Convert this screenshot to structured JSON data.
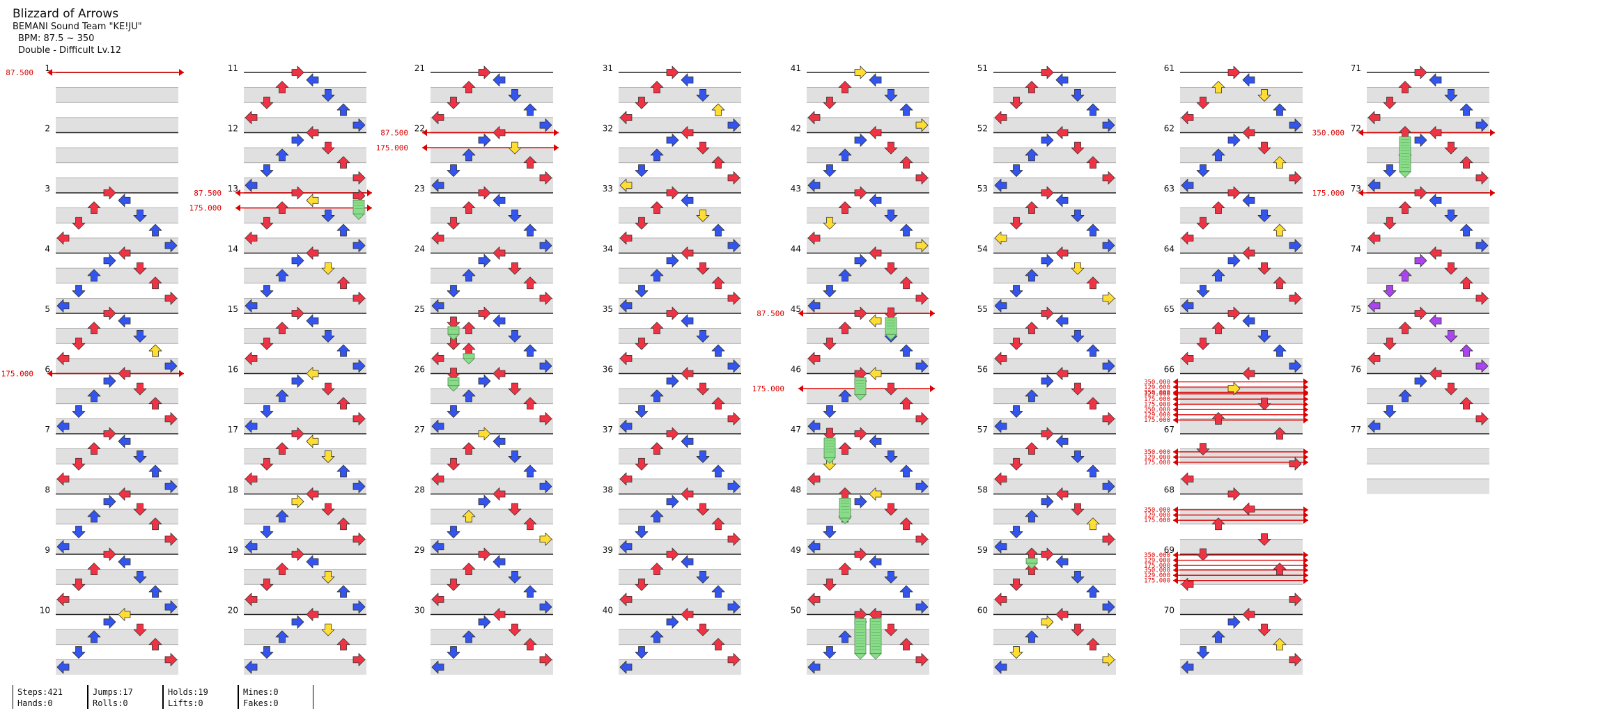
{
  "song": {
    "title": "Blizzard of Arrows",
    "artist": "BEMANI Sound Team \"KE!JU\"",
    "bpm": "BPM: 87.5 ~ 350",
    "difficulty": "Double - Difficult  Lv.12"
  },
  "columns": [
    {
      "measures": [
        1,
        2,
        3,
        4,
        5,
        6,
        7,
        8,
        9,
        10
      ]
    },
    {
      "measures": [
        11,
        12,
        13,
        14,
        15,
        16,
        17,
        18,
        19,
        20
      ]
    },
    {
      "measures": [
        21,
        22,
        23,
        24,
        25,
        26,
        27,
        28,
        29,
        30
      ]
    },
    {
      "measures": [
        31,
        32,
        33,
        34,
        35,
        36,
        37,
        38,
        39,
        40
      ]
    },
    {
      "measures": [
        41,
        42,
        43,
        44,
        45,
        46,
        47,
        48,
        49,
        50
      ]
    },
    {
      "measures": [
        51,
        52,
        53,
        54,
        55,
        56,
        57,
        58,
        59,
        60
      ]
    },
    {
      "measures": [
        61,
        62,
        63,
        64,
        65,
        66,
        67,
        68,
        69,
        70
      ]
    },
    {
      "measures": [
        71,
        72,
        73,
        74,
        75,
        76,
        77
      ]
    }
  ],
  "bpm_changes": [
    {
      "measure": 1,
      "beat": 0,
      "bpm": "87.500"
    },
    {
      "measure": 6,
      "beat": 0,
      "bpm": "175.000"
    },
    {
      "measure": 13,
      "beat": 0,
      "bpm": "87.500"
    },
    {
      "measure": 13,
      "beat": 1,
      "bpm": "175.000"
    },
    {
      "measure": 22,
      "beat": 0,
      "bpm": "87.500"
    },
    {
      "measure": 22,
      "beat": 1,
      "bpm": "175.000"
    },
    {
      "measure": 45,
      "beat": 0,
      "bpm": "87.500"
    },
    {
      "measure": 46,
      "beat": 1,
      "bpm": "175.000"
    },
    {
      "measure": 72,
      "beat": 0,
      "bpm": "350.000"
    },
    {
      "measure": 73,
      "beat": 0,
      "bpm": "175.000"
    }
  ],
  "bpm_clusters": [
    {
      "measure": 66,
      "beat": 0.55,
      "labels": [
        "350.000",
        "129.000",
        "350.000"
      ]
    },
    {
      "measure": 66,
      "beat": 1.35,
      "labels": [
        "129.000",
        "175.000",
        "175.000",
        "350.000",
        "129.000",
        "175.000"
      ]
    },
    {
      "measure": 67,
      "beat": 1.2,
      "labels": [
        "350.000",
        "129.000",
        "175.000"
      ]
    },
    {
      "measure": 68,
      "beat": 1.05,
      "labels": [
        "350.000",
        "129.000",
        "175.000"
      ]
    },
    {
      "measure": 69,
      "beat": 0.05,
      "labels": [
        "350.000",
        "129.000",
        "175.000"
      ]
    },
    {
      "measure": 69,
      "beat": 1.05,
      "labels": [
        "350.000",
        "129.000",
        "175.000"
      ]
    }
  ],
  "stats": [
    [
      "Steps:421",
      "Hands:0"
    ],
    [
      "Jumps:17",
      "Rolls:0"
    ],
    [
      "Holds:19",
      "Lifts:0"
    ],
    [
      "Mines:0",
      "Fakes:0"
    ]
  ],
  "colors": {
    "quarter_note": "#ee3344",
    "eighth_note": "#3355ee",
    "sixteenth_note": "#ffdd33",
    "twelfth_note": "#aa44ee",
    "hold_body": "#88dd88",
    "bpm_line": "#dd0000",
    "lane_shade": "#e0e0e0"
  }
}
